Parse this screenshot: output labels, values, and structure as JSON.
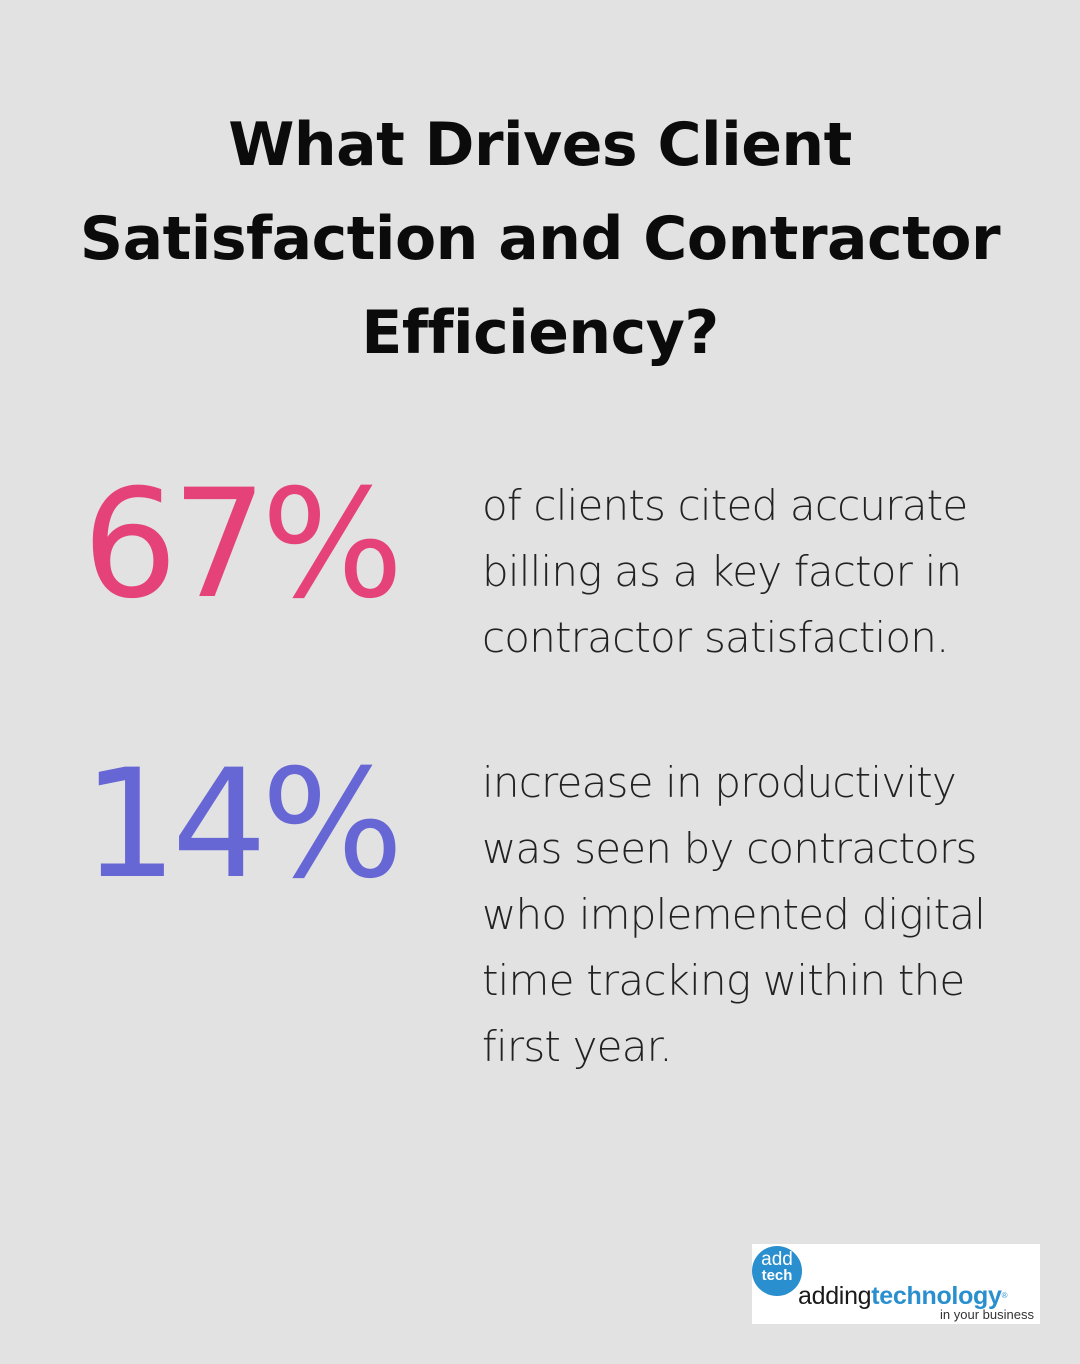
{
  "title": "What Drives Client Satisfaction and Contractor Efficiency?",
  "stats": [
    {
      "value": "67%",
      "description": "of clients cited accurate billing as a key factor in contractor satisfaction.",
      "color": "#e5427a"
    },
    {
      "value": "14%",
      "description": "increase in productivity was seen by contractors who implemented digital time tracking within the first year.",
      "color": "#6666d5"
    }
  ],
  "logo": {
    "badge_top": "add",
    "badge_bottom": "tech",
    "word_part1": "adding",
    "word_part2": "technology",
    "registered": "®",
    "tagline": "in your business",
    "brand_color": "#2a8fce"
  }
}
